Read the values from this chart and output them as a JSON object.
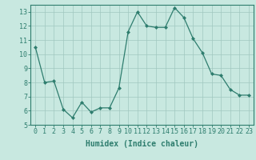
{
  "x": [
    0,
    1,
    2,
    3,
    4,
    5,
    6,
    7,
    8,
    9,
    10,
    11,
    12,
    13,
    14,
    15,
    16,
    17,
    18,
    19,
    20,
    21,
    22,
    23
  ],
  "y": [
    10.5,
    8.0,
    8.1,
    6.1,
    5.5,
    6.6,
    5.9,
    6.2,
    6.2,
    7.6,
    11.6,
    13.0,
    12.0,
    11.9,
    11.9,
    13.3,
    12.6,
    11.1,
    10.1,
    8.6,
    8.5,
    7.5,
    7.1,
    7.1
  ],
  "line_color": "#2e7d6e",
  "marker": "D",
  "marker_size": 2,
  "bg_color": "#c8e8e0",
  "grid_color": "#a0c8c0",
  "xlabel": "Humidex (Indice chaleur)",
  "ylim": [
    5,
    13.5
  ],
  "xlim": [
    -0.5,
    23.5
  ],
  "yticks": [
    5,
    6,
    7,
    8,
    9,
    10,
    11,
    12,
    13
  ],
  "xticks": [
    0,
    1,
    2,
    3,
    4,
    5,
    6,
    7,
    8,
    9,
    10,
    11,
    12,
    13,
    14,
    15,
    16,
    17,
    18,
    19,
    20,
    21,
    22,
    23
  ],
  "tick_label_fontsize": 6,
  "xlabel_fontsize": 7
}
